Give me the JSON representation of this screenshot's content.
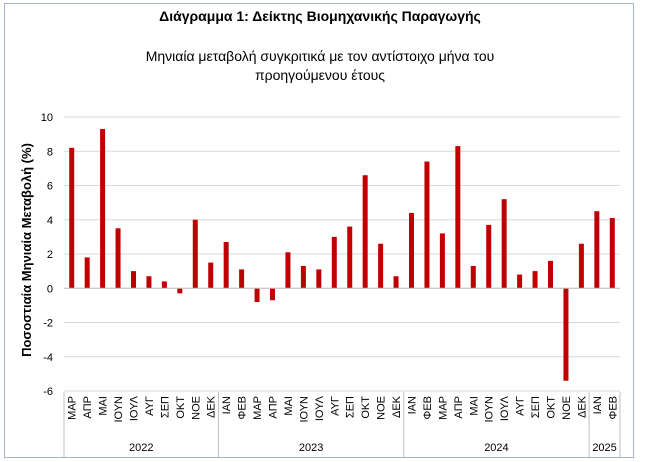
{
  "chart_data": {
    "type": "bar",
    "title": "Διάγραμμα 1: Δείκτης Βιομηχανικής Παραγωγής",
    "subtitle_line1": "Μηνιαία μεταβολή συγκριτικά με τον αντίστοιχο μήνα του",
    "subtitle_line2": "προηγούμενου έτους",
    "ylabel": "Ποσοστιαία Μηνιαία Μεταβολή (%)",
    "xlabel": "",
    "ylim": [
      -6,
      10
    ],
    "yticks": [
      -6,
      -4,
      -2,
      0,
      2,
      4,
      6,
      8,
      10
    ],
    "grid": true,
    "bar_color": "#c00000",
    "categories": [
      "ΜΑΡ",
      "ΑΠΡ",
      "ΜΑΙ",
      "ΙΟΥΝ",
      "ΙΟΥΛ",
      "ΑΥΓ",
      "ΣΕΠ",
      "ΟΚΤ",
      "ΝΟΕ",
      "ΔΕΚ",
      "ΙΑΝ",
      "ΦΕΒ",
      "ΜΑΡ",
      "ΑΠΡ",
      "ΜΑΙ",
      "ΙΟΥΝ",
      "ΙΟΥΛ",
      "ΑΥΓ",
      "ΣΕΠ",
      "ΟΚΤ",
      "ΝΟΕ",
      "ΔΕΚ",
      "ΙΑΝ",
      "ΦΕΒ",
      "ΜΑΡ",
      "ΑΠΡ",
      "ΜΑΙ",
      "ΙΟΥΝ",
      "ΙΟΥΛ",
      "ΑΥΓ",
      "ΣΕΠ",
      "ΟΚΤ",
      "ΝΟΕ",
      "ΔΕΚ",
      "ΙΑΝ",
      "ΦΕΒ"
    ],
    "values": [
      8.2,
      1.8,
      9.3,
      3.5,
      1.0,
      0.7,
      0.4,
      -0.3,
      4.0,
      1.5,
      2.7,
      1.1,
      -0.8,
      -0.7,
      2.1,
      1.3,
      1.1,
      3.0,
      3.6,
      6.6,
      2.6,
      0.7,
      4.4,
      7.4,
      3.2,
      8.3,
      1.3,
      3.7,
      5.2,
      0.8,
      1.0,
      1.6,
      -5.4,
      2.6,
      4.5,
      4.1
    ],
    "year_groups": [
      {
        "label": "2022",
        "start": 0,
        "count": 10
      },
      {
        "label": "2023",
        "start": 10,
        "count": 12
      },
      {
        "label": "2024",
        "start": 22,
        "count": 12
      },
      {
        "label": "2025",
        "start": 34,
        "count": 2
      }
    ]
  }
}
